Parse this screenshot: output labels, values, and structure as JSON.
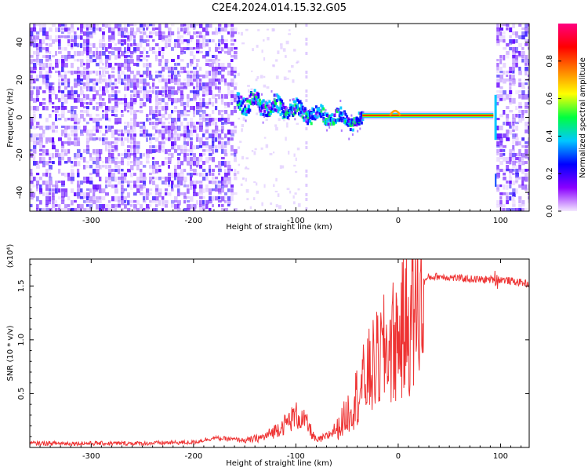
{
  "title": "C2E4.2024.014.15.32.G05",
  "chart_data": [
    {
      "type": "heatmap",
      "xlabel": "Height of straight line (km)",
      "ylabel": "Frequency (Hz)",
      "xlim": [
        -360,
        128
      ],
      "ylim": [
        -50,
        50
      ],
      "x_ticks": [
        -300,
        -200,
        -100,
        0,
        100
      ],
      "y_ticks": [
        -40,
        -20,
        0,
        20,
        40
      ],
      "colorbar": {
        "label": "Normalized spectral amplitude",
        "range": [
          0.0,
          1.0
        ],
        "ticks": [
          0.0,
          0.2,
          0.4,
          0.6,
          0.8
        ],
        "colormap": [
          "#f4e8ff",
          "#8a00ff",
          "#0000ff",
          "#00c8ff",
          "#00ff40",
          "#ffff00",
          "#ff8000",
          "#ff0000",
          "#ff0080"
        ]
      },
      "regions": [
        {
          "x": [
            -360,
            -158
          ],
          "description": "broadband noise",
          "amplitude": 0.15
        },
        {
          "x": [
            -158,
            -35
          ],
          "freq_start": 9,
          "freq_end": -3,
          "amplitude": 0.45
        },
        {
          "x": [
            -35,
            93
          ],
          "freq": 1,
          "amplitude": 0.85
        },
        {
          "x": [
            96,
            128
          ],
          "description": "broadband noise",
          "amplitude": 0.15
        }
      ]
    },
    {
      "type": "line",
      "xlabel": "Height of straight line (km)",
      "ylabel": "SNR (10 * v/v)",
      "y_multiplier": "(x10⁴)",
      "xlim": [
        -360,
        128
      ],
      "ylim": [
        0,
        17500
      ],
      "x_ticks": [
        -300,
        -200,
        -100,
        0,
        100
      ],
      "y_ticks": [
        5000,
        10000,
        15000
      ],
      "y_tick_labels": [
        "0.5",
        "1.0",
        "1.5"
      ],
      "color": "#ee3333",
      "series": [
        {
          "x": [
            -360,
            -300,
            -250,
            -200,
            -180,
            -150,
            -130,
            -110,
            -100,
            -90,
            -80,
            -70,
            -60,
            -50,
            -40,
            -30,
            -20,
            -10,
            0,
            10,
            20,
            30,
            40,
            60,
            80,
            100,
            128
          ],
          "values": [
            300,
            300,
            300,
            400,
            800,
            600,
            1000,
            2200,
            3000,
            2300,
            600,
            1000,
            1800,
            3500,
            5500,
            7500,
            9000,
            10500,
            11500,
            13000,
            15000,
            15800,
            15900,
            15700,
            15600,
            15600,
            15200
          ]
        }
      ]
    }
  ]
}
